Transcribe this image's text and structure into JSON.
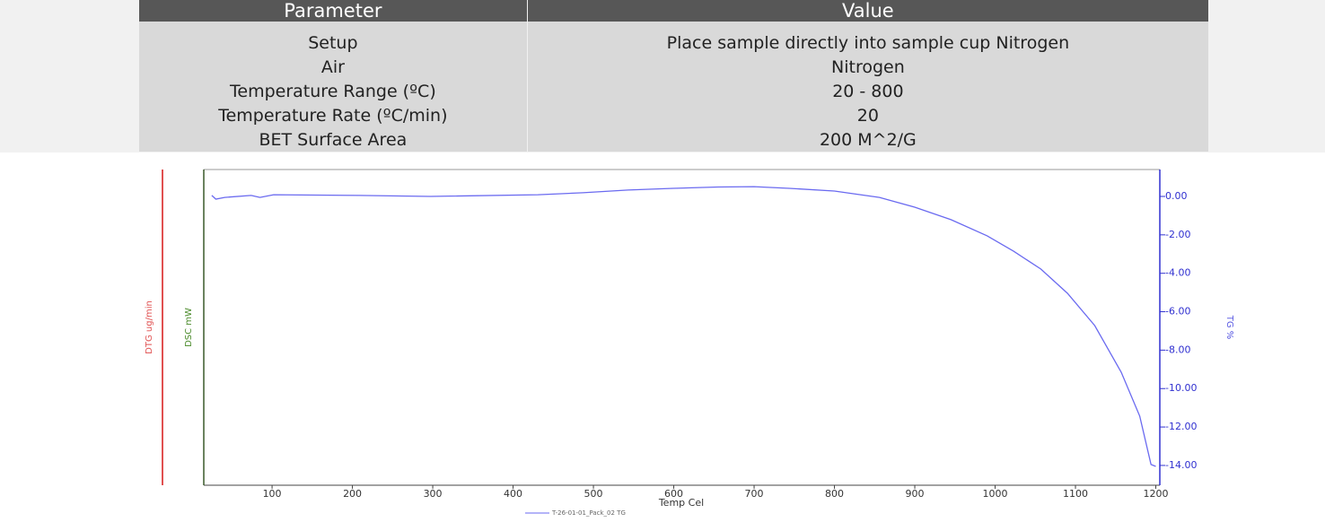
{
  "table": {
    "header": [
      "Parameter",
      "Value"
    ],
    "rows": [
      [
        "Setup",
        "Place sample directly into sample cup Nitrogen"
      ],
      [
        "Air",
        "Nitrogen"
      ],
      [
        "Temperature Range (ºC)",
        "20 - 800"
      ],
      [
        "Temperature Rate (ºC/min)",
        "20"
      ],
      [
        "BET Surface Area",
        "200 M^2/G"
      ]
    ]
  },
  "chart_data": {
    "type": "line",
    "x_label": "Temp Cel",
    "y_label": "TG %",
    "y_label_dsc": "DSC mW",
    "y_label_dtg": "DTG ug/min",
    "x": [
      25,
      30,
      41,
      74,
      85,
      102,
      208,
      297,
      431,
      487,
      543,
      599,
      655,
      700,
      744,
      800,
      856,
      900,
      945,
      990,
      1023,
      1057,
      1090,
      1124,
      1157,
      1180,
      1194,
      1200
    ],
    "series": [
      {
        "name": "T-26-01-01_Pack_02  TG",
        "color": "#6a6af0",
        "values": [
          0.05,
          -0.14,
          -0.05,
          0.05,
          -0.05,
          0.09,
          0.05,
          0,
          0.09,
          0.19,
          0.33,
          0.42,
          0.49,
          0.51,
          0.42,
          0.28,
          -0.05,
          -0.56,
          -1.21,
          -2.05,
          -2.85,
          -3.78,
          -5.04,
          -6.72,
          -9.15,
          -11.43,
          -13.95,
          -14.05
        ]
      }
    ],
    "xlim": [
      15,
      1205
    ],
    "xticks": [
      100,
      200,
      300,
      400,
      500,
      600,
      700,
      800,
      900,
      1000,
      1100,
      1200
    ],
    "ylim": [
      -15.03,
      1.4
    ],
    "yticks": [
      {
        "value": 0,
        "label": "0.00"
      },
      {
        "value": -2,
        "label": "-2.00"
      },
      {
        "value": -4,
        "label": "-4.00"
      },
      {
        "value": -6,
        "label": "-6.00"
      },
      {
        "value": -8,
        "label": "-8.00"
      },
      {
        "value": -10,
        "label": "-10.00"
      },
      {
        "value": -12,
        "label": "-12.00"
      },
      {
        "value": -14,
        "label": "-14.00"
      }
    ]
  }
}
